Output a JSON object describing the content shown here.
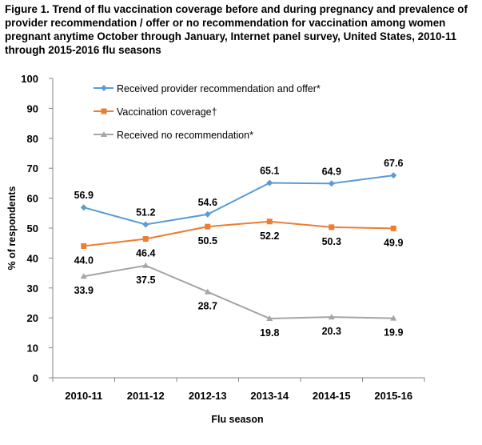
{
  "chart_data": {
    "type": "line",
    "title": "Figure 1. Trend of flu vaccination coverage before and during pregnancy and prevalence of provider recommendation / offer or no recommendation for vaccination among women pregnant anytime October through January, Internet panel survey, United States,  2010-11 through 2015-2016 flu seasons",
    "xlabel": "Flu season",
    "ylabel": "% of respondents",
    "ylim": [
      0,
      100
    ],
    "yticks": [
      0,
      10,
      20,
      30,
      40,
      50,
      60,
      70,
      80,
      90,
      100
    ],
    "grid": false,
    "legend_position": "top-left",
    "categories": [
      "2010-11",
      "2011-12",
      "2012-13",
      "2013-14",
      "2014-15",
      "2015-16"
    ],
    "series": [
      {
        "name": "Received provider recommendation and offer*",
        "values": [
          56.9,
          51.2,
          54.6,
          65.1,
          64.9,
          67.6
        ],
        "labels": [
          "56.9",
          "51.2",
          "54.6",
          "65.1",
          "64.9",
          "67.6"
        ],
        "color": "#5B9BD5",
        "marker": "diamond",
        "label_position": "above"
      },
      {
        "name": "Vaccination coverage†",
        "values": [
          44.0,
          46.4,
          50.5,
          52.2,
          50.3,
          49.9
        ],
        "labels": [
          "44.0",
          "46.4",
          "50.5",
          "52.2",
          "50.3",
          "49.9"
        ],
        "color": "#ED7D31",
        "marker": "square",
        "label_position": "below"
      },
      {
        "name": "Received no recommendation*",
        "values": [
          33.9,
          37.5,
          28.7,
          19.8,
          20.3,
          19.9
        ],
        "labels": [
          "33.9",
          "37.5",
          "28.7",
          "19.8",
          "20.3",
          "19.9"
        ],
        "color": "#A5A5A5",
        "marker": "triangle",
        "label_position": "below"
      }
    ]
  }
}
